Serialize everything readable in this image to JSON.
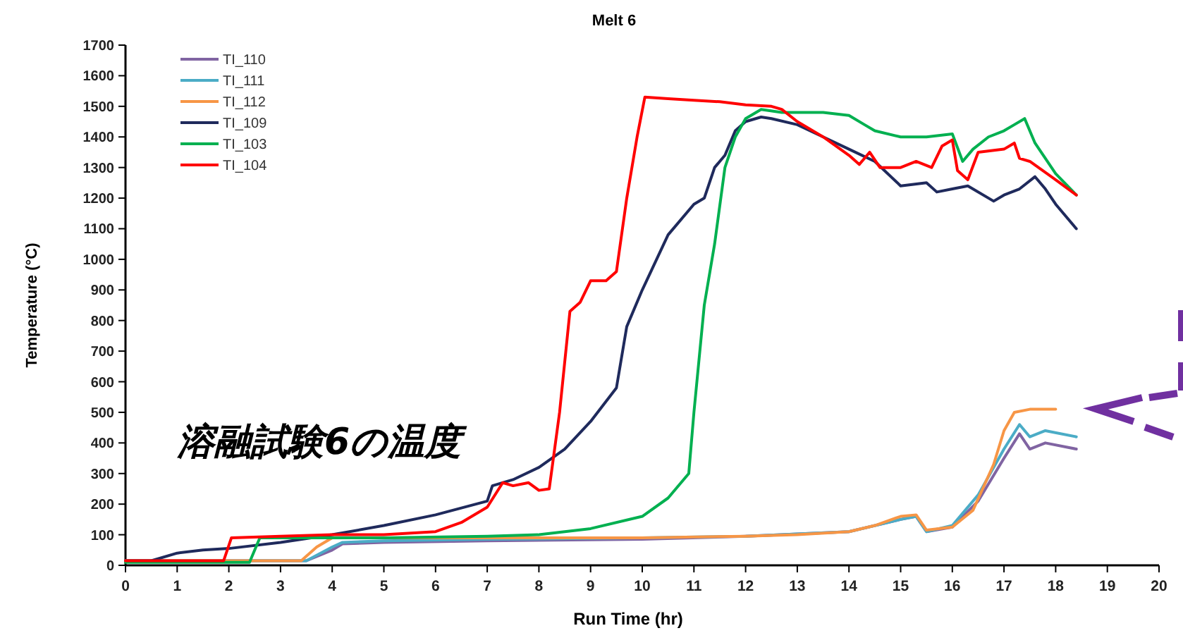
{
  "chart_data": {
    "type": "line",
    "title": "Melt 6",
    "xlabel": "Run Time (hr)",
    "ylabel": "Temperature (°C)",
    "annotations": [
      "溶融試験6の温度"
    ],
    "xlim": [
      0,
      20
    ],
    "xticks": [
      0,
      1,
      2,
      3,
      4,
      5,
      6,
      7,
      8,
      9,
      10,
      11,
      12,
      13,
      14,
      15,
      16,
      17,
      18,
      19,
      20
    ],
    "ylim": [
      0,
      1700
    ],
    "yticks": [
      0,
      100,
      200,
      300,
      400,
      500,
      600,
      700,
      800,
      900,
      1000,
      1100,
      1200,
      1300,
      1400,
      1500,
      1600,
      1700
    ],
    "legend": "top left",
    "grid": false,
    "marker": "none",
    "line_style": "solid",
    "series": [
      {
        "name": "TI_110",
        "color": "#8064a2",
        "x": [
          0,
          3.5,
          4,
          4.2,
          5,
          7,
          10,
          12,
          14,
          15,
          15.3,
          15.5,
          16,
          16.5,
          17,
          17.3,
          17.5,
          17.8,
          18.4
        ],
        "values": [
          15,
          15,
          50,
          70,
          75,
          80,
          85,
          95,
          110,
          150,
          160,
          110,
          125,
          210,
          350,
          430,
          380,
          400,
          380
        ]
      },
      {
        "name": "TI_111",
        "color": "#4bacc6",
        "x": [
          0,
          3.5,
          4,
          4.2,
          5,
          7,
          10,
          12,
          14,
          15,
          15.3,
          15.5,
          16,
          16.5,
          17,
          17.3,
          17.5,
          17.8,
          18.4
        ],
        "values": [
          15,
          15,
          60,
          75,
          80,
          85,
          90,
          95,
          110,
          150,
          160,
          110,
          130,
          230,
          380,
          460,
          420,
          440,
          420
        ]
      },
      {
        "name": "TI_112",
        "color": "#f79646",
        "x": [
          0,
          3.4,
          3.7,
          4,
          5,
          8,
          10,
          12,
          13,
          14,
          14.5,
          15,
          15.3,
          15.5,
          16,
          16.4,
          16.8,
          17,
          17.2,
          17.5,
          18
        ],
        "values": [
          15,
          15,
          60,
          90,
          90,
          90,
          90,
          95,
          100,
          110,
          130,
          160,
          165,
          115,
          125,
          180,
          330,
          440,
          500,
          510,
          510
        ]
      },
      {
        "name": "TI_109",
        "color": "#1f2a5c",
        "x": [
          0,
          0.5,
          1,
          1.5,
          2,
          3,
          4,
          5,
          6,
          7,
          7.1,
          7.5,
          8,
          8.5,
          9,
          9.5,
          9.7,
          10,
          10.5,
          11,
          11.2,
          11.4,
          11.6,
          11.8,
          12,
          12.3,
          12.5,
          13,
          13.5,
          14,
          14.5,
          15,
          15.5,
          15.7,
          16,
          16.3,
          16.8,
          17,
          17.3,
          17.6,
          17.8,
          18,
          18.4
        ],
        "values": [
          15,
          15,
          40,
          50,
          55,
          75,
          100,
          130,
          165,
          210,
          260,
          280,
          320,
          380,
          470,
          580,
          780,
          900,
          1080,
          1180,
          1200,
          1300,
          1340,
          1420,
          1450,
          1465,
          1460,
          1440,
          1400,
          1360,
          1320,
          1240,
          1250,
          1220,
          1230,
          1240,
          1190,
          1210,
          1230,
          1270,
          1230,
          1180,
          1100
        ]
      },
      {
        "name": "TI_103",
        "color": "#00b050",
        "x": [
          0,
          2.4,
          2.6,
          3,
          5,
          7,
          8,
          9,
          10,
          10.5,
          10.9,
          11,
          11.2,
          11.4,
          11.6,
          11.8,
          12,
          12.3,
          12.7,
          13,
          13.5,
          14,
          14.3,
          14.5,
          15,
          15.5,
          16,
          16.2,
          16.4,
          16.7,
          17,
          17.2,
          17.4,
          17.6,
          18,
          18.4
        ],
        "values": [
          10,
          10,
          90,
          90,
          90,
          95,
          100,
          120,
          160,
          220,
          300,
          500,
          850,
          1050,
          1300,
          1400,
          1460,
          1490,
          1480,
          1480,
          1480,
          1470,
          1440,
          1420,
          1400,
          1400,
          1410,
          1320,
          1360,
          1400,
          1420,
          1440,
          1460,
          1380,
          1280,
          1210
        ]
      },
      {
        "name": "TI_104",
        "color": "#ff0000",
        "x": [
          0,
          1.9,
          2.05,
          3,
          4,
          5,
          6,
          6.5,
          7,
          7.3,
          7.5,
          7.8,
          8,
          8.2,
          8.4,
          8.6,
          8.8,
          9,
          9.3,
          9.5,
          9.7,
          9.9,
          10.05,
          10.5,
          11,
          11.5,
          12,
          12.5,
          12.7,
          13,
          13.5,
          14,
          14.2,
          14.4,
          14.6,
          15,
          15.3,
          15.6,
          15.8,
          16,
          16.1,
          16.3,
          16.5,
          17,
          17.2,
          17.3,
          17.5,
          18,
          18.4
        ],
        "values": [
          15,
          15,
          90,
          95,
          100,
          100,
          110,
          140,
          190,
          270,
          260,
          270,
          245,
          250,
          500,
          830,
          860,
          930,
          930,
          960,
          1200,
          1400,
          1530,
          1525,
          1520,
          1515,
          1505,
          1500,
          1490,
          1450,
          1400,
          1340,
          1310,
          1350,
          1300,
          1300,
          1320,
          1300,
          1370,
          1390,
          1290,
          1260,
          1350,
          1360,
          1380,
          1330,
          1320,
          1260,
          1210
        ]
      }
    ]
  }
}
